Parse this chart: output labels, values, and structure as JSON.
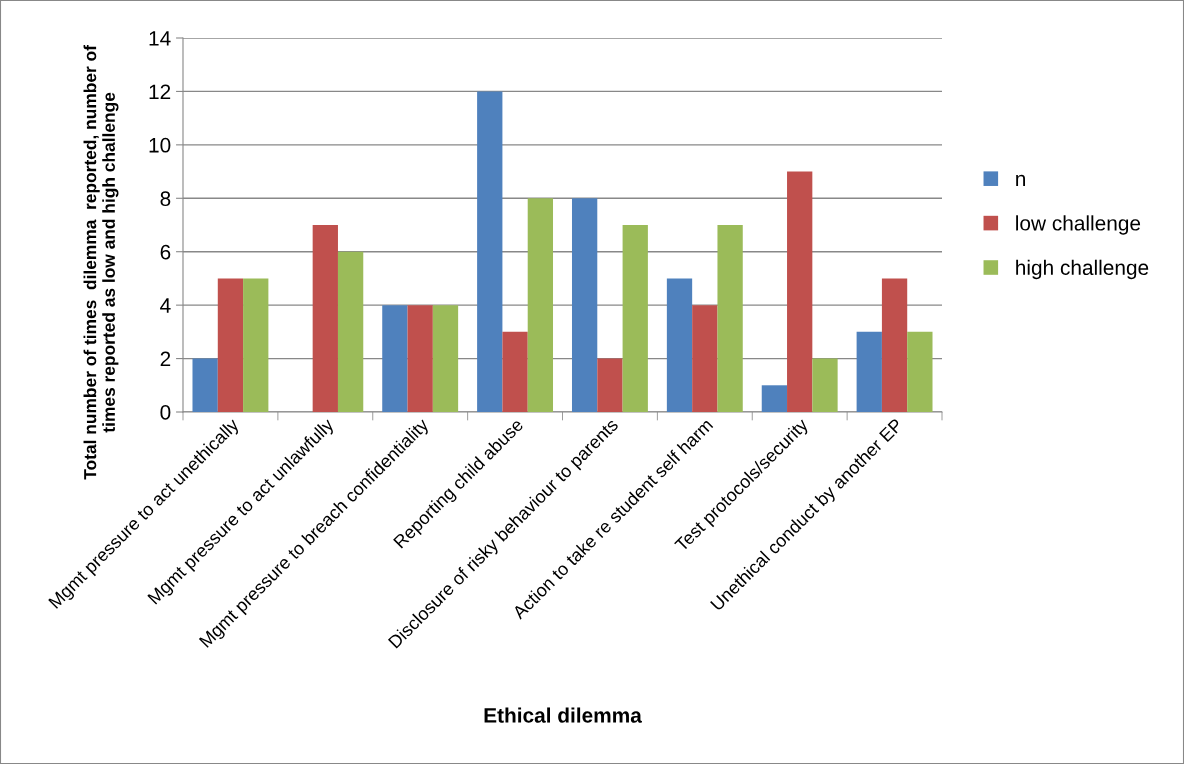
{
  "chart_data": {
    "type": "bar",
    "xlabel": "Ethical dilemma",
    "ylabel": "Total number of times  dilemma  reported, number of\ntimes reported as low and high challenge",
    "categories": [
      "Mgmt pressure to act unethically",
      "Mgmt pressure to act unlawfully",
      "Mgmt pressure to breach confidentiality",
      "Reporting child abuse",
      "Disclosure of risky behaviour to parents",
      "Action to take re student self harm",
      "Test protocols/security",
      "Unethical conduct by another EP"
    ],
    "series": [
      {
        "name": "n",
        "color": "#4f81bd",
        "values": [
          2,
          0,
          4,
          12,
          8,
          5,
          1,
          3
        ]
      },
      {
        "name": "low challenge",
        "color": "#c0504d",
        "values": [
          5,
          7,
          4,
          3,
          2,
          4,
          9,
          5
        ]
      },
      {
        "name": "high challenge",
        "color": "#9bbb59",
        "values": [
          5,
          6,
          4,
          8,
          7,
          7,
          2,
          3
        ]
      }
    ],
    "ylim": [
      0,
      14
    ],
    "yticks": [
      0,
      2,
      4,
      6,
      8,
      10,
      12,
      14
    ],
    "grid": "y",
    "legend": "right"
  }
}
